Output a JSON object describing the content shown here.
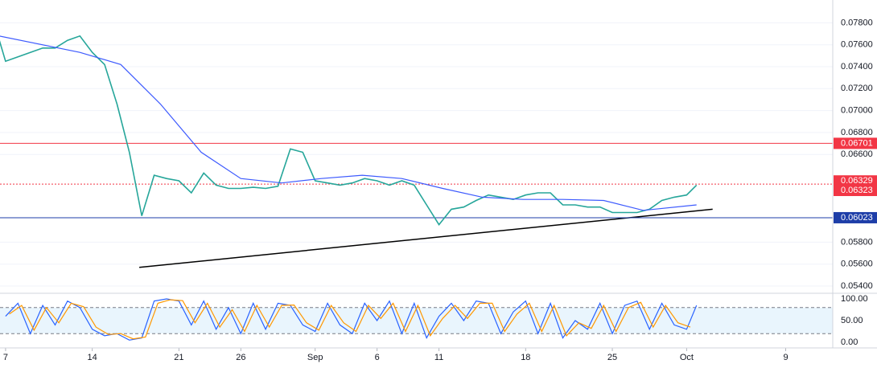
{
  "chart_data": [
    {
      "type": "line",
      "xlim": [
        6.55,
        73.8
      ],
      "ylim": [
        0.05334,
        0.08008
      ],
      "yticks": [
        {
          "value": 0.054,
          "label": "0.05400"
        },
        {
          "value": 0.056,
          "label": "0.05600"
        },
        {
          "value": 0.058,
          "label": "0.05800"
        },
        {
          "value": 0.066,
          "label": "0.06600"
        },
        {
          "value": 0.068,
          "label": "0.06800"
        },
        {
          "value": 0.07,
          "label": "0.07000"
        },
        {
          "value": 0.072,
          "label": "0.07200"
        },
        {
          "value": 0.074,
          "label": "0.07400"
        },
        {
          "value": 0.076,
          "label": "0.07600"
        },
        {
          "value": 0.078,
          "label": "0.07800"
        }
      ],
      "grid": true,
      "series": [
        {
          "color": "#26a69a",
          "x": [
            6.5,
            7,
            8,
            9,
            10,
            11,
            12,
            13,
            14,
            15,
            16,
            17,
            18,
            19,
            20,
            21,
            22,
            23,
            24,
            25,
            26,
            27,
            28,
            29,
            30,
            31,
            32,
            33,
            34,
            35,
            36,
            37,
            38,
            39,
            40,
            41,
            42,
            43,
            44,
            45,
            46,
            47,
            48,
            49,
            50,
            51,
            52,
            53,
            54,
            55,
            56,
            57,
            58,
            59,
            60,
            61,
            62,
            62.8
          ],
          "values": [
            0.0764,
            0.0745,
            0.0749,
            0.0753,
            0.0757,
            0.0757,
            0.0764,
            0.0768,
            0.0753,
            0.0742,
            0.0706,
            0.0662,
            0.0604,
            0.0641,
            0.0638,
            0.0636,
            0.0625,
            0.0643,
            0.0632,
            0.0629,
            0.0629,
            0.063,
            0.0629,
            0.0631,
            0.0665,
            0.0662,
            0.0636,
            0.0634,
            0.0632,
            0.0634,
            0.0638,
            0.0636,
            0.0632,
            0.0636,
            0.0632,
            0.0614,
            0.0596,
            0.061,
            0.0612,
            0.0618,
            0.0623,
            0.0621,
            0.0619,
            0.0623,
            0.0625,
            0.0625,
            0.0614,
            0.0614,
            0.0612,
            0.0612,
            0.0607,
            0.0607,
            0.0607,
            0.061,
            0.0618,
            0.0621,
            0.0623,
            0.0632
          ]
        },
        {
          "color": "#3d5afe",
          "x": [
            6.5,
            13,
            16.3,
            19.5,
            22.8,
            26,
            29.3,
            32.5,
            35.8,
            39,
            42.3,
            45.5,
            48.8,
            52,
            55.3,
            58.5,
            62.8
          ],
          "values": [
            0.0768,
            0.0753,
            0.0742,
            0.0706,
            0.0662,
            0.0638,
            0.0634,
            0.0638,
            0.0641,
            0.0638,
            0.0629,
            0.0621,
            0.0619,
            0.0619,
            0.0618,
            0.0609,
            0.0614
          ]
        }
      ],
      "trendline": {
        "color": "#000000",
        "x": [
          17.8,
          64.1
        ],
        "values": [
          0.0557,
          0.061
        ]
      },
      "price_lines": [
        {
          "value": 0.06701,
          "color": "#f23645",
          "style": "solid"
        },
        {
          "value": 0.06329,
          "color": "#f23645",
          "style": "dotted"
        },
        {
          "value": 0.06323,
          "color": "#f23645",
          "style": "none"
        },
        {
          "value": 0.06023,
          "color": "#1e3ea8",
          "style": "solid"
        }
      ]
    },
    {
      "type": "line",
      "xlim": [
        6.55,
        73.8
      ],
      "ylim": [
        -13,
        113
      ],
      "yticks": [
        {
          "value": 0,
          "label": "0.00"
        },
        {
          "value": 50,
          "label": "50.00"
        },
        {
          "value": 100,
          "label": "100.00"
        }
      ],
      "band": [
        20,
        80
      ],
      "xticks": [
        {
          "value": 7,
          "label": "7"
        },
        {
          "value": 14,
          "label": "14"
        },
        {
          "value": 21,
          "label": "21"
        },
        {
          "value": 26,
          "label": "26"
        },
        {
          "value": 32,
          "label": "Sep"
        },
        {
          "value": 37,
          "label": "6"
        },
        {
          "value": 42,
          "label": "11"
        },
        {
          "value": 49,
          "label": "18"
        },
        {
          "value": 56,
          "label": "25"
        },
        {
          "value": 62,
          "label": "Oct"
        },
        {
          "value": 70,
          "label": "9"
        }
      ],
      "series": [
        {
          "color": "#2962ff",
          "x": [
            7,
            8,
            9,
            10,
            11,
            12,
            13,
            14,
            15,
            16,
            17,
            18,
            19,
            20,
            21,
            22,
            23,
            24,
            25,
            26,
            27,
            28,
            29,
            30,
            31,
            32,
            33,
            34,
            35,
            36,
            37,
            38,
            39,
            40,
            41,
            42,
            43,
            44,
            45,
            46,
            47,
            48,
            49,
            50,
            51,
            52,
            53,
            54,
            55,
            56,
            57,
            58,
            59,
            60,
            61,
            62,
            62.8
          ],
          "values": [
            60,
            90,
            20,
            85,
            40,
            95,
            80,
            30,
            15,
            20,
            5,
            10,
            95,
            100,
            95,
            40,
            95,
            30,
            80,
            20,
            90,
            30,
            90,
            85,
            40,
            25,
            90,
            40,
            20,
            90,
            50,
            95,
            20,
            90,
            10,
            60,
            90,
            50,
            95,
            90,
            20,
            70,
            95,
            20,
            90,
            10,
            50,
            30,
            90,
            20,
            85,
            95,
            30,
            90,
            40,
            30,
            85
          ]
        },
        {
          "color": "#ff9800",
          "x": [
            7.3,
            8.3,
            9.3,
            10.3,
            11.3,
            12.3,
            13.3,
            14.3,
            15.3,
            16.3,
            17.3,
            18.3,
            19.3,
            20.3,
            21.3,
            22.3,
            23.3,
            24.3,
            25.3,
            26.3,
            27.3,
            28.3,
            29.3,
            30.3,
            31.3,
            32.3,
            33.3,
            34.3,
            35.3,
            36.3,
            37.3,
            38.3,
            39.3,
            40.3,
            41.3,
            42.3,
            43.3,
            44.3,
            45.3,
            46.3,
            47.3,
            48.3,
            49.3,
            50.3,
            51.3,
            52.3,
            53.3,
            54.3,
            55.3,
            56.3,
            57.3,
            58.3,
            59.3,
            60.3,
            61.3,
            62.3
          ],
          "values": [
            65,
            85,
            28,
            80,
            45,
            90,
            82,
            35,
            18,
            20,
            8,
            12,
            90,
            98,
            96,
            45,
            90,
            35,
            75,
            25,
            85,
            35,
            85,
            86,
            45,
            28,
            85,
            45,
            25,
            85,
            55,
            90,
            25,
            85,
            15,
            55,
            85,
            55,
            90,
            90,
            25,
            65,
            90,
            25,
            85,
            15,
            45,
            32,
            85,
            25,
            80,
            92,
            35,
            85,
            45,
            35
          ]
        }
      ]
    }
  ]
}
